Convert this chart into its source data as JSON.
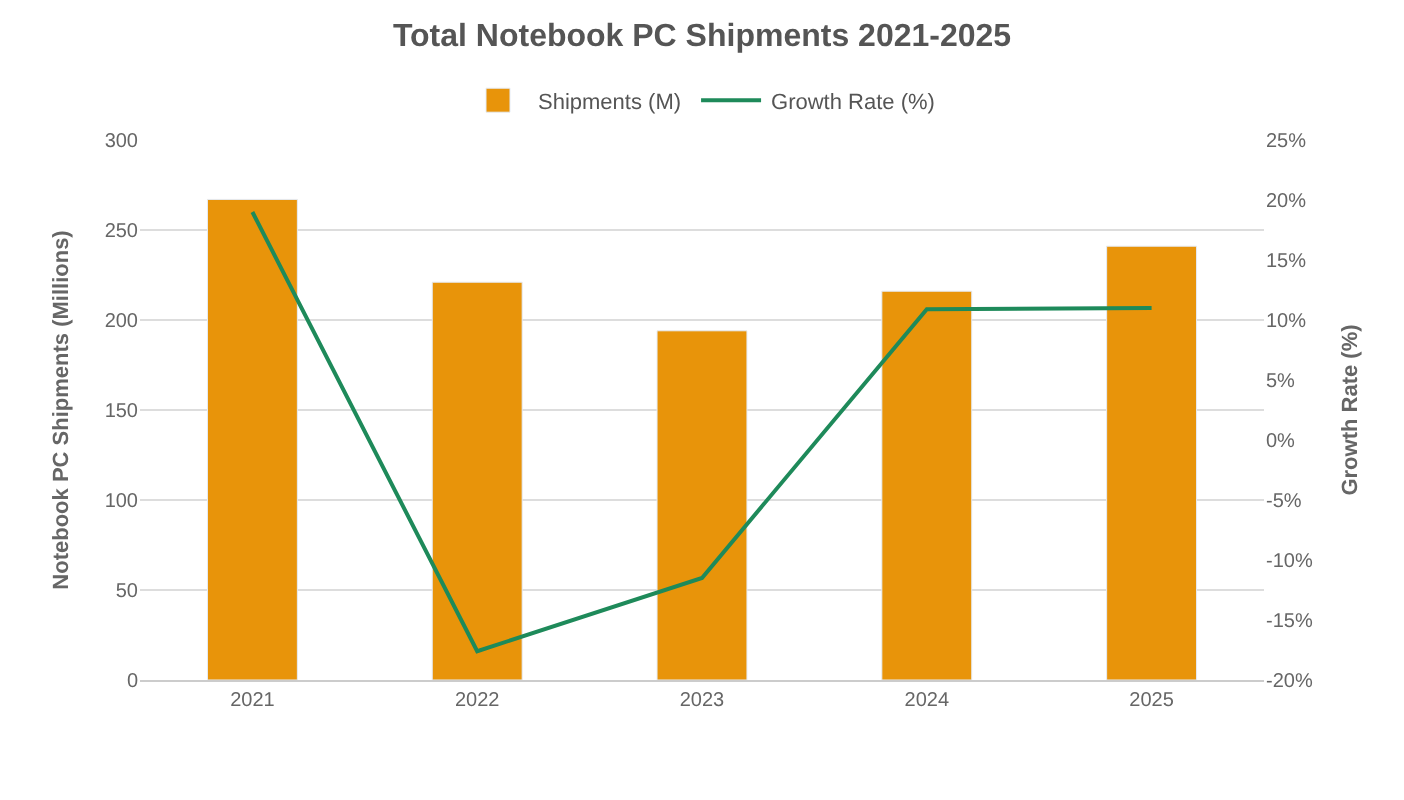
{
  "chart_data": {
    "type": "bar",
    "title": "Total Notebook PC Shipments 2021-2025",
    "categories": [
      "2021",
      "2022",
      "2023",
      "2024",
      "2025"
    ],
    "series": [
      {
        "name": "Shipments (M)",
        "color": "#e8940a",
        "values": [
          267,
          221,
          194,
          216,
          241
        ]
      },
      {
        "name": "Growth Rate (%)",
        "type": "line",
        "axis": "y2",
        "color": "#1e8a5a",
        "values": [
          19,
          -17.6,
          -11.5,
          10.9,
          11
        ]
      }
    ],
    "ylabel": "Notebook PC Shipments (Millions)",
    "y2label": "Growth Rate (%)",
    "ylim": [
      0,
      300
    ],
    "yticks": [
      0,
      50,
      100,
      150,
      200,
      250,
      300
    ],
    "y2lim": [
      -20,
      25
    ],
    "y2ticks": [
      {
        "value": -20,
        "label": "-20%"
      },
      {
        "value": -15,
        "label": "-15%"
      },
      {
        "value": -10,
        "label": "-10%"
      },
      {
        "value": -5,
        "label": "-5%"
      },
      {
        "value": 0,
        "label": "0%"
      },
      {
        "value": 5,
        "label": "5%"
      },
      {
        "value": 10,
        "label": "10%"
      },
      {
        "value": 15,
        "label": "15%"
      },
      {
        "value": 20,
        "label": "20%"
      },
      {
        "value": 25,
        "label": "25%"
      }
    ],
    "grid": "y",
    "legend": "top",
    "marker": "none",
    "line_style": "solid"
  }
}
